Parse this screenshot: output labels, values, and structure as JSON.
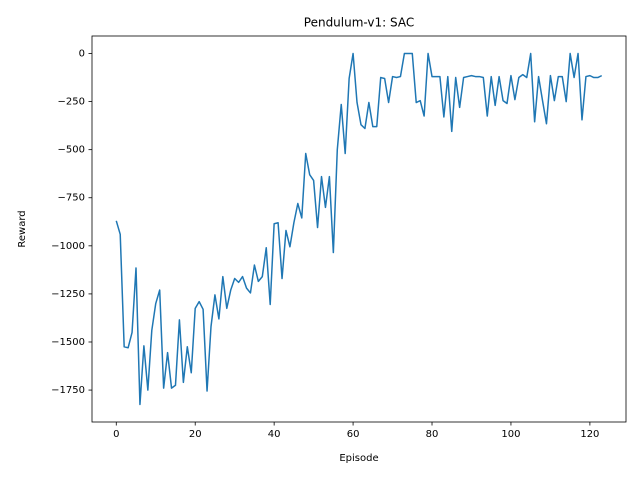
{
  "chart_data": {
    "type": "line",
    "title": "Pendulum-v1: SAC",
    "x_label": "Episode",
    "y_label": "Reward",
    "x": [
      0,
      1,
      2,
      3,
      4,
      5,
      6,
      7,
      8,
      9,
      10,
      11,
      12,
      13,
      14,
      15,
      16,
      17,
      18,
      19,
      20,
      21,
      22,
      23,
      24,
      25,
      26,
      27,
      28,
      29,
      30,
      31,
      32,
      33,
      34,
      35,
      36,
      37,
      38,
      39,
      40,
      41,
      42,
      43,
      44,
      45,
      46,
      47,
      48,
      49,
      50,
      51,
      52,
      53,
      54,
      55,
      56,
      57,
      58,
      59,
      60,
      61,
      62,
      63,
      64,
      65,
      66,
      67,
      68,
      69,
      70,
      71,
      72,
      73,
      74,
      75,
      76,
      77,
      78,
      79,
      80,
      81,
      82,
      83,
      84,
      85,
      86,
      87,
      88,
      89,
      90,
      91,
      92,
      93,
      94,
      95,
      96,
      97,
      98,
      99,
      100,
      101,
      102,
      103,
      104,
      105,
      106,
      107,
      108,
      109,
      110,
      111,
      112,
      113,
      114,
      115,
      116,
      117,
      118,
      119,
      120,
      121,
      122,
      123
    ],
    "values": [
      -870,
      -940,
      -1525,
      -1530,
      -1450,
      -1115,
      -1825,
      -1520,
      -1750,
      -1440,
      -1300,
      -1230,
      -1740,
      -1555,
      -1740,
      -1725,
      -1385,
      -1710,
      -1525,
      -1660,
      -1325,
      -1290,
      -1330,
      -1755,
      -1420,
      -1255,
      -1380,
      -1160,
      -1325,
      -1230,
      -1170,
      -1190,
      -1160,
      -1220,
      -1245,
      -1100,
      -1185,
      -1160,
      -1010,
      -1305,
      -885,
      -880,
      -1170,
      -920,
      -1005,
      -880,
      -780,
      -855,
      -520,
      -630,
      -660,
      -905,
      -640,
      -800,
      -640,
      -1035,
      -500,
      -265,
      -520,
      -130,
      0,
      -255,
      -370,
      -390,
      -255,
      -380,
      -380,
      -125,
      -130,
      -255,
      -120,
      -125,
      -120,
      0,
      0,
      0,
      -255,
      -245,
      -325,
      0,
      -120,
      -120,
      -120,
      -330,
      -120,
      -405,
      -125,
      -280,
      -125,
      -120,
      -115,
      -120,
      -120,
      -125,
      -325,
      -120,
      -270,
      -120,
      -245,
      -260,
      -115,
      -240,
      -125,
      -110,
      -125,
      0,
      -355,
      -120,
      -245,
      -365,
      -115,
      -245,
      -120,
      -120,
      -250,
      0,
      -125,
      0,
      -345,
      -120,
      -115,
      -125,
      -125,
      -115
    ],
    "color": "#1f77b4",
    "xlim": [
      -6.15,
      129.15
    ],
    "xticks": [
      0,
      20,
      40,
      60,
      80,
      100,
      120
    ],
    "ylim": [
      -1916,
      91
    ],
    "yticks": [
      {
        "value": -1750,
        "label": "−1750"
      },
      {
        "value": -1500,
        "label": "−1500"
      },
      {
        "value": -1250,
        "label": "−1250"
      },
      {
        "value": -1000,
        "label": "−1000"
      },
      {
        "value": -750,
        "label": "−750"
      },
      {
        "value": -500,
        "label": "−500"
      },
      {
        "value": -250,
        "label": "−250"
      },
      0
    ],
    "grid": false
  }
}
